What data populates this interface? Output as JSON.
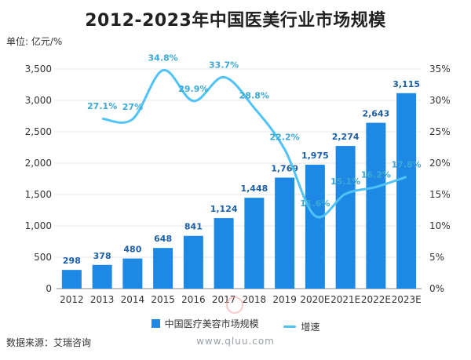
{
  "title": "2012-2023年中国医美行业市场规模",
  "unit_label": "单位: 亿元/%",
  "source": "数据来源：艾瑞咨询",
  "watermark": "www.qluu.com",
  "colors": {
    "bar": "#1e88e5",
    "line": "#4fc3f7",
    "axis": "#555555",
    "grid": "#e6e6e6"
  },
  "chart_data": {
    "type": "bar+line",
    "categories": [
      "2012",
      "2013",
      "2014",
      "2015",
      "2016",
      "2017",
      "2018",
      "2019",
      "2020E",
      "2021E",
      "2022E",
      "2023E"
    ],
    "series": [
      {
        "name": "中国医疗美容市场规模",
        "type": "bar",
        "axis": "left",
        "values": [
          298,
          378,
          480,
          648,
          841,
          1124,
          1448,
          1769,
          1975,
          2274,
          2643,
          3115
        ],
        "labels": [
          "298",
          "378",
          "480",
          "648",
          "841",
          "1,124",
          "1,448",
          "1,769",
          "1,975",
          "2,274",
          "2,643",
          "3,115"
        ]
      },
      {
        "name": "增速",
        "type": "line",
        "axis": "right",
        "values": [
          null,
          27.1,
          27.0,
          34.8,
          29.9,
          33.7,
          28.8,
          22.2,
          11.6,
          15.1,
          16.2,
          17.8
        ],
        "labels": [
          "",
          "27.1%",
          "27%",
          "34.8%",
          "29.9%",
          "33.7%",
          "28.8%",
          "22.2%",
          "11.6%",
          "15.1%",
          "16.2%",
          "17.8%"
        ]
      }
    ],
    "y_left": {
      "min": 0,
      "max": 3500,
      "ticks": [
        0,
        500,
        1000,
        1500,
        2000,
        2500,
        3000,
        3500
      ],
      "tick_labels": [
        "0",
        "500",
        "1,000",
        "1,500",
        "2,000",
        "2,500",
        "3,000",
        "3,500"
      ]
    },
    "y_right": {
      "min": 0,
      "max": 35,
      "ticks": [
        0,
        5,
        10,
        15,
        20,
        25,
        30,
        35
      ],
      "tick_labels": [
        "0%",
        "5%",
        "10%",
        "15%",
        "20%",
        "25%",
        "30%",
        "35%"
      ]
    },
    "grid": true,
    "legend_position": "bottom"
  }
}
